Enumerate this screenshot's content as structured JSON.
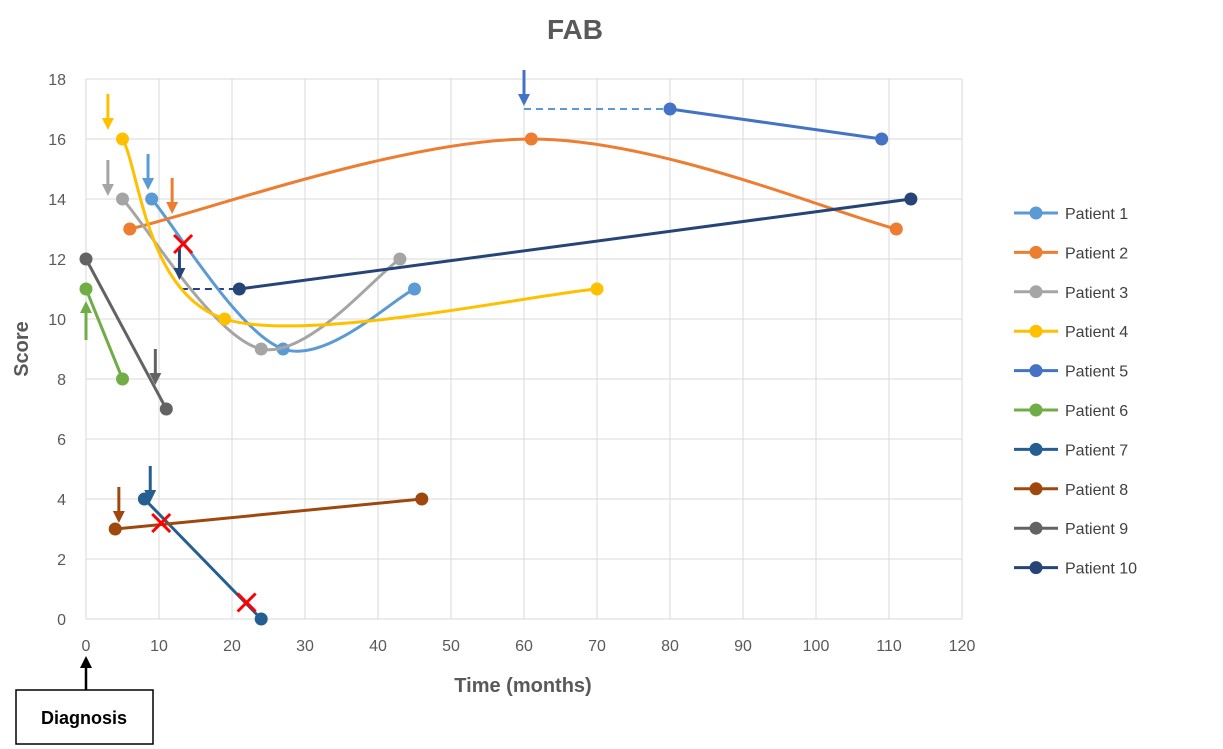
{
  "chart_data": {
    "type": "line",
    "title": "FAB",
    "xlabel": "Time (months)",
    "ylabel": "Score",
    "xlim": [
      0,
      120
    ],
    "ylim": [
      0,
      18
    ],
    "xticks": [
      0,
      10,
      20,
      30,
      40,
      50,
      60,
      70,
      80,
      90,
      100,
      110,
      120
    ],
    "yticks": [
      0,
      2,
      4,
      6,
      8,
      10,
      12,
      14,
      16,
      18
    ],
    "grid": true,
    "legend_position": "right",
    "annotation_label": "Diagnosis",
    "series": [
      {
        "name": "Patient 1",
        "color": "#5B9BD5",
        "smooth": true,
        "points": [
          [
            9,
            14
          ],
          [
            27,
            9
          ],
          [
            45,
            11
          ]
        ]
      },
      {
        "name": "Patient 2",
        "color": "#ED7D31",
        "smooth": true,
        "points": [
          [
            6,
            13
          ],
          [
            61,
            16
          ],
          [
            111,
            13
          ]
        ]
      },
      {
        "name": "Patient 3",
        "color": "#A5A5A5",
        "smooth": true,
        "points": [
          [
            5,
            14
          ],
          [
            24,
            9
          ],
          [
            43,
            12
          ]
        ]
      },
      {
        "name": "Patient 4",
        "color": "#FFC000",
        "smooth": true,
        "points": [
          [
            5,
            16
          ],
          [
            19,
            10
          ],
          [
            70,
            11
          ]
        ]
      },
      {
        "name": "Patient 5",
        "color": "#4472C4",
        "smooth": false,
        "points": [
          [
            80,
            17
          ],
          [
            109,
            16
          ]
        ]
      },
      {
        "name": "Patient 6",
        "color": "#70AD47",
        "smooth": false,
        "points": [
          [
            0,
            11
          ],
          [
            5,
            8
          ]
        ]
      },
      {
        "name": "Patient 7",
        "color": "#255E91",
        "smooth": false,
        "points": [
          [
            8,
            4
          ],
          [
            24,
            0
          ]
        ]
      },
      {
        "name": "Patient 8",
        "color": "#9E480E",
        "smooth": false,
        "points": [
          [
            4,
            3
          ],
          [
            46,
            4
          ]
        ]
      },
      {
        "name": "Patient 9",
        "color": "#636363",
        "smooth": false,
        "points": [
          [
            0,
            12
          ],
          [
            11,
            7
          ]
        ]
      },
      {
        "name": "Patient 10",
        "color": "#264478",
        "smooth": false,
        "points": [
          [
            21,
            11
          ],
          [
            113,
            14
          ]
        ]
      }
    ],
    "dashed_connectors": [
      {
        "color": "#5B9BD5",
        "from": [
          60,
          17
        ],
        "to": [
          80,
          17
        ]
      },
      {
        "color": "#264478",
        "from": [
          13,
          11
        ],
        "to": [
          21,
          11
        ]
      }
    ],
    "arrows": [
      {
        "color": "#FFC000",
        "x": 3,
        "y_top": 17.5,
        "y_tip": 16.3,
        "dir": "down"
      },
      {
        "color": "#A5A5A5",
        "x": 3,
        "y_top": 15.3,
        "y_tip": 14.1,
        "dir": "down"
      },
      {
        "color": "#5B9BD5",
        "x": 8.5,
        "y_top": 15.5,
        "y_tip": 14.3,
        "dir": "down"
      },
      {
        "color": "#ED7D31",
        "x": 11.8,
        "y_top": 14.7,
        "y_tip": 13.5,
        "dir": "down"
      },
      {
        "color": "#4472C4",
        "x": 60,
        "y_top": 18.3,
        "y_tip": 17.1,
        "dir": "down"
      },
      {
        "color": "#264478",
        "x": 12.8,
        "y_top": 12.4,
        "y_tip": 11.3,
        "dir": "down"
      },
      {
        "color": "#636363",
        "x": 9.5,
        "y_top": 9.0,
        "y_tip": 7.8,
        "dir": "down"
      },
      {
        "color": "#255E91",
        "x": 8.8,
        "y_top": 5.1,
        "y_tip": 3.9,
        "dir": "down"
      },
      {
        "color": "#9E480E",
        "x": 4.5,
        "y_top": 4.4,
        "y_tip": 3.2,
        "dir": "down"
      },
      {
        "color": "#70AD47",
        "x": 0,
        "y_top": 10.6,
        "y_tip": 9.3,
        "dir": "up"
      }
    ],
    "cross_markers": [
      {
        "x": 13.3,
        "y": 12.5
      },
      {
        "x": 10.3,
        "y": 3.2
      },
      {
        "x": 22,
        "y": 0.55
      }
    ]
  }
}
